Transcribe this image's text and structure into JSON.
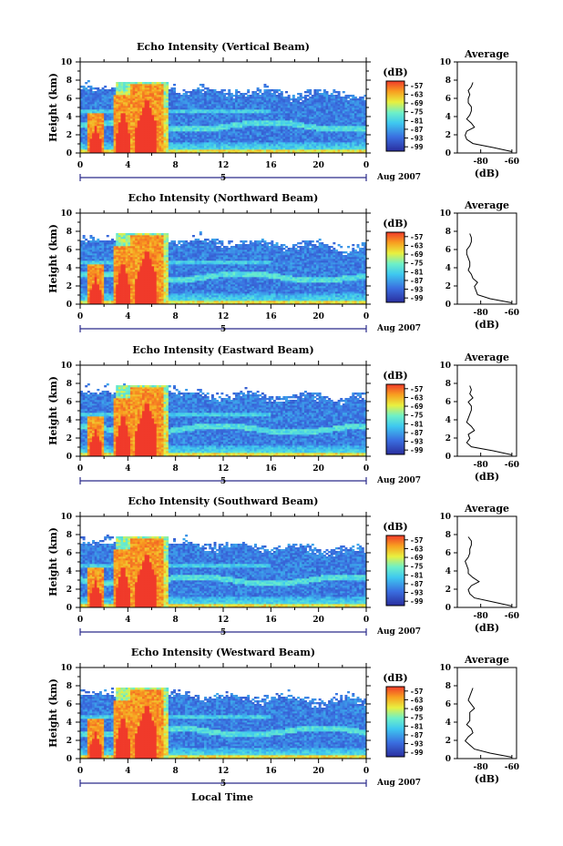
{
  "chart_data": {
    "type": "heatmap",
    "x_axis": {
      "ticks": [
        "0",
        "4",
        "8",
        "12",
        "16",
        "20",
        "0"
      ],
      "date_label": "5",
      "month_label": "Aug 2007",
      "label": "Local Time"
    },
    "y_axis": {
      "label": "Height (km)",
      "ticks": [
        "0",
        "2",
        "4",
        "6",
        "8",
        "10"
      ],
      "range": [
        0,
        10
      ]
    },
    "colorbar": {
      "unit": "(dB)",
      "ticks": [
        "-57",
        "-63",
        "-69",
        "-75",
        "-81",
        "-87",
        "-93",
        "-99"
      ],
      "range": [
        -102,
        -54
      ]
    },
    "average_profile": {
      "title": "Average",
      "xlabel": "(dB)",
      "x_ticks": [
        "-80",
        "-60"
      ],
      "y_ticks": [
        "0",
        "2",
        "4",
        "6",
        "8",
        "10"
      ]
    },
    "panels": [
      {
        "title": "Echo Intensity (Vertical Beam)",
        "profile_db": [
          -60,
          -72,
          -85,
          -89,
          -90,
          -89,
          -84,
          -86,
          -89,
          -87,
          -86,
          -86,
          -88,
          -88,
          -87,
          -88,
          -86,
          -85
        ]
      },
      {
        "title": "Echo Intensity (Northward Beam)",
        "profile_db": [
          -60,
          -74,
          -82,
          -83,
          -84,
          -82,
          -85,
          -86,
          -88,
          -87,
          -87,
          -88,
          -89,
          -89,
          -87,
          -86,
          -86,
          -87
        ]
      },
      {
        "title": "Echo Intensity (Eastward Beam)",
        "profile_db": [
          -60,
          -72,
          -86,
          -89,
          -87,
          -88,
          -84,
          -86,
          -89,
          -88,
          -87,
          -86,
          -86,
          -88,
          -85,
          -87,
          -86,
          -87
        ]
      },
      {
        "title": "Echo Intensity (Southward Beam)",
        "profile_db": [
          -60,
          -72,
          -84,
          -87,
          -88,
          -86,
          -81,
          -85,
          -88,
          -88,
          -89,
          -90,
          -88,
          -87,
          -87,
          -86,
          -86,
          -88
        ]
      },
      {
        "title": "Echo Intensity (Westward Beam)",
        "profile_db": [
          -60,
          -74,
          -84,
          -87,
          -90,
          -88,
          -85,
          -86,
          -89,
          -87,
          -87,
          -87,
          -84,
          -86,
          -88,
          -87,
          -86,
          -85
        ]
      }
    ]
  }
}
